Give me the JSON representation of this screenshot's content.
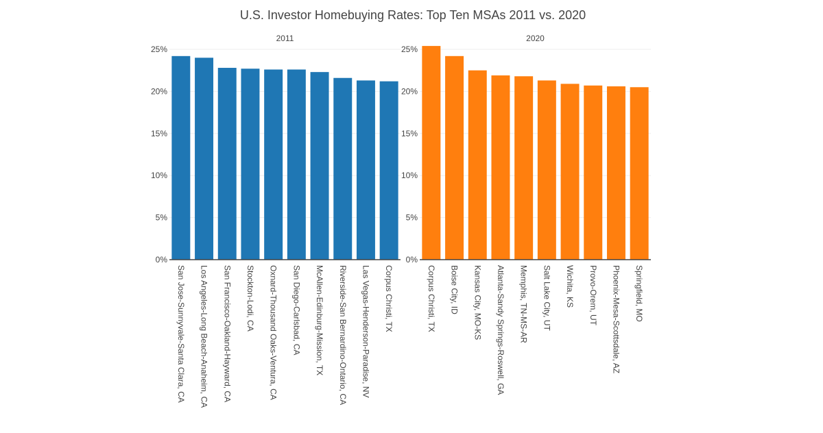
{
  "title": "U.S. Investor Homebuying Rates: Top Ten MSAs 2011 vs. 2020",
  "chart_data": [
    {
      "type": "bar",
      "subplot_title": "2011",
      "color": "#1f77b4",
      "ylim": [
        0,
        25
      ],
      "yticks": [
        0,
        5,
        10,
        15,
        20,
        25
      ],
      "ytick_labels": [
        "0%",
        "5%",
        "10%",
        "15%",
        "20%",
        "25%"
      ],
      "categories": [
        "San Jose-Sunnyvale-Santa Clara, CA",
        "Los Angeles-Long Beach-Anaheim, CA",
        "San Francisco-Oakland-Hayward, CA",
        "Stockton-Lodi, CA",
        "Oxnard-Thousand Oaks-Ventura, CA",
        "San Diego-Carlsbad, CA",
        "McAllen-Edinburg-Mission, TX",
        "Riverside-San Bernardino-Ontario, CA",
        "Las Vegas-Henderson-Paradise, NV",
        "Corpus Christi, TX"
      ],
      "values": [
        24.2,
        24.0,
        22.8,
        22.7,
        22.6,
        22.6,
        22.3,
        21.6,
        21.3,
        21.2
      ],
      "grid": true
    },
    {
      "type": "bar",
      "subplot_title": "2020",
      "color": "#ff7f0e",
      "ylim": [
        0,
        25
      ],
      "yticks": [
        0,
        5,
        10,
        15,
        20,
        25
      ],
      "ytick_labels": [
        "0%",
        "5%",
        "10%",
        "15%",
        "20%",
        "25%"
      ],
      "categories": [
        "Corpus Christi, TX",
        "Boise City, ID",
        "Kansas City, MO-KS",
        "Atlanta-Sandy Springs-Roswell, GA",
        "Memphis, TN-MS-AR",
        "Salt Lake City, UT",
        "Wichita, KS",
        "Provo-Orem, UT",
        "Phoenix-Mesa-Scottsdale, AZ",
        "Springfield, MO"
      ],
      "values": [
        25.4,
        24.2,
        22.5,
        21.9,
        21.8,
        21.3,
        20.9,
        20.7,
        20.6,
        20.5
      ],
      "grid": true
    }
  ]
}
